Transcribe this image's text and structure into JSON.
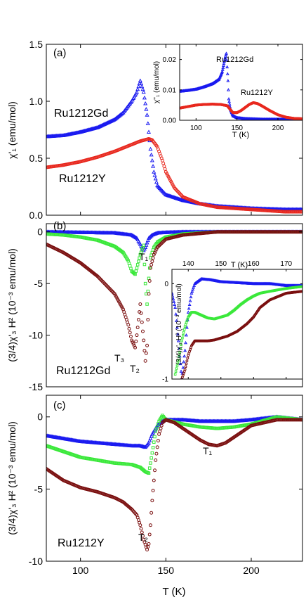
{
  "figure": {
    "xlabel": "T (K)"
  },
  "chart_data": [
    {
      "type": "scatter",
      "panel_label": "(a)",
      "ylabel": "χ'₁ (emu/mol)",
      "xlim": [
        80,
        230
      ],
      "ylim": [
        0,
        1.5
      ],
      "x_ticks": [
        100,
        150,
        200
      ],
      "y_ticks": [
        "0.0",
        "0.5",
        "1.0",
        "1.5"
      ],
      "annotations": [
        "Ru1212Gd",
        "Ru1212Y"
      ],
      "series": [
        {
          "color": "#1a1af0",
          "marker": "triangle",
          "x": [
            80,
            90,
            100,
            110,
            120,
            125,
            130,
            133,
            135,
            137,
            139,
            141,
            143,
            145,
            150,
            160,
            170,
            180,
            200,
            220,
            230
          ],
          "y": [
            0.69,
            0.7,
            0.73,
            0.77,
            0.84,
            0.9,
            1.0,
            1.08,
            1.18,
            1.08,
            0.88,
            0.58,
            0.38,
            0.26,
            0.18,
            0.13,
            0.1,
            0.08,
            0.06,
            0.05,
            0.05
          ]
        },
        {
          "color": "#e8281e",
          "marker": "circle",
          "x": [
            80,
            90,
            100,
            110,
            120,
            130,
            135,
            140,
            142,
            145,
            148,
            150,
            155,
            160,
            170,
            180,
            200,
            220,
            230
          ],
          "y": [
            0.42,
            0.44,
            0.47,
            0.51,
            0.56,
            0.62,
            0.65,
            0.67,
            0.66,
            0.6,
            0.48,
            0.38,
            0.24,
            0.16,
            0.1,
            0.07,
            0.05,
            0.03,
            0.03
          ]
        }
      ],
      "inset": {
        "ylabel": "χ''₁ (emu/mol)",
        "xlabel": "T (K)",
        "xlim": [
          80,
          230
        ],
        "ylim": [
          0,
          0.025
        ],
        "x_ticks": [
          100,
          150,
          200
        ],
        "y_ticks": [
          "0.00",
          "0.01",
          "0.02"
        ],
        "annotations": [
          "Ru1212Gd",
          "Ru1212Y"
        ],
        "series": [
          {
            "color": "#1a1af0",
            "marker": "triangle",
            "x": [
              80,
              90,
              100,
              110,
              120,
              128,
              132,
              135,
              137,
              139,
              140,
              142,
              145,
              150,
              160,
              180,
              200,
              230
            ],
            "y": [
              0.0095,
              0.0098,
              0.0102,
              0.011,
              0.012,
              0.0135,
              0.016,
              0.02,
              0.022,
              0.013,
              0.007,
              0.0035,
              0.0015,
              0.0008,
              0.0005,
              0.0003,
              0.0003,
              0.0003
            ]
          },
          {
            "color": "#e8281e",
            "marker": "circle",
            "x": [
              80,
              90,
              100,
              110,
              120,
              130,
              138,
              142,
              145,
              150,
              155,
              160,
              165,
              170,
              175,
              180,
              190,
              200,
              210,
              220,
              230
            ],
            "y": [
              0.004,
              0.0045,
              0.005,
              0.0052,
              0.0053,
              0.0052,
              0.0048,
              0.0035,
              0.0025,
              0.0025,
              0.0032,
              0.0042,
              0.0052,
              0.0058,
              0.0055,
              0.0048,
              0.0032,
              0.0018,
              0.001,
              0.0006,
              0.0005
            ]
          }
        ]
      }
    },
    {
      "type": "scatter",
      "panel_label": "(b)",
      "ylabel": "(3/4)χ'₃ H² (10⁻³ emu/mol)",
      "xlim": [
        80,
        230
      ],
      "ylim": [
        -15,
        0.8
      ],
      "y_ticks": [
        "0",
        "-5",
        "-10",
        "-15"
      ],
      "annotations": [
        "Ru1212Gd",
        "T₁",
        "T₂",
        "T₃"
      ],
      "series": [
        {
          "color": "#1a1af0",
          "marker": "triangle",
          "x": [
            80,
            100,
            120,
            130,
            133,
            135,
            137,
            138,
            140,
            142,
            145,
            150,
            160,
            170,
            200,
            230
          ],
          "y": [
            0,
            -0.05,
            -0.1,
            -0.3,
            -0.6,
            -1.2,
            -1.8,
            -1.5,
            -0.6,
            -0.3,
            -0.1,
            -0.05,
            0,
            0,
            0,
            0
          ]
        },
        {
          "color": "#3ae83a",
          "marker": "square",
          "x": [
            80,
            90,
            100,
            110,
            120,
            125,
            128,
            130,
            132,
            133,
            135,
            137,
            138,
            139,
            140,
            141,
            143,
            145,
            150,
            160,
            180,
            230
          ],
          "y": [
            -0.2,
            -0.3,
            -0.5,
            -0.8,
            -1.4,
            -2.0,
            -2.8,
            -3.8,
            -4.1,
            -3.5,
            -2.2,
            -1.3,
            -5.0,
            -7.0,
            -4.5,
            -2.5,
            -1.5,
            -1.0,
            -0.5,
            -0.2,
            0,
            0
          ]
        },
        {
          "color": "#7a0f0f",
          "marker": "circle",
          "x": [
            80,
            90,
            100,
            110,
            120,
            125,
            128,
            130,
            132,
            133,
            135,
            137,
            138,
            139,
            140,
            141,
            143,
            145,
            150,
            160,
            180,
            230
          ],
          "y": [
            -1.2,
            -2.0,
            -3.0,
            -4.3,
            -6.0,
            -7.5,
            -9.0,
            -10.5,
            -11.2,
            -10.0,
            -7.0,
            -10.5,
            -12.5,
            -11.0,
            -6.0,
            -3.5,
            -2.2,
            -1.5,
            -0.7,
            -0.3,
            0,
            0
          ]
        }
      ],
      "inset": {
        "ylabel": "(3/4)χ'₃ H² (10⁻³ emu/mol)",
        "xlabel": "T (K)",
        "xlim": [
          135,
          175
        ],
        "ylim": [
          -1,
          0.15
        ],
        "x_ticks": [
          140,
          150,
          160,
          170
        ],
        "y_ticks": [
          "0",
          "-1"
        ],
        "series": [
          {
            "color": "#1a1af0",
            "marker": "triangle",
            "x": [
              135,
              136,
              137,
              138,
              139,
              140,
              141,
              142,
              144,
              147,
              150,
              155,
              160,
              165,
              170,
              175
            ],
            "y": [
              -0.1,
              -0.25,
              -0.6,
              -1.0,
              -0.7,
              -0.3,
              -0.1,
              0.0,
              0.05,
              0.04,
              0.02,
              0.01,
              0.0,
              0.0,
              -0.02,
              -0.02
            ]
          },
          {
            "color": "#3ae83a",
            "marker": "square",
            "x": [
              136,
              137,
              138,
              139,
              140,
              141,
              142,
              144,
              146,
              148,
              150,
              152,
              154,
              156,
              158,
              160,
              162,
              165,
              170,
              175
            ],
            "y": [
              -0.95,
              -0.8,
              -0.6,
              -0.45,
              -0.35,
              -0.3,
              -0.3,
              -0.33,
              -0.36,
              -0.37,
              -0.35,
              -0.33,
              -0.28,
              -0.22,
              -0.17,
              -0.13,
              -0.1,
              -0.08,
              -0.05,
              -0.03
            ]
          },
          {
            "color": "#7a0f0f",
            "marker": "circle",
            "x": [
              138,
              139,
              140,
              141,
              142,
              143,
              144,
              146,
              148,
              150,
              152,
              155,
              158,
              160,
              162,
              165,
              170,
              175
            ],
            "y": [
              -1.0,
              -0.9,
              -0.75,
              -0.65,
              -0.6,
              -0.6,
              -0.6,
              -0.6,
              -0.59,
              -0.57,
              -0.55,
              -0.5,
              -0.42,
              -0.35,
              -0.25,
              -0.17,
              -0.1,
              -0.08
            ]
          }
        ]
      }
    },
    {
      "type": "scatter",
      "panel_label": "(c)",
      "ylabel": "(3/4)χ'₃ H² (10⁻³ emu/mol)",
      "xlim": [
        80,
        230
      ],
      "ylim": [
        -10,
        1.5
      ],
      "x_ticks": [
        100,
        150,
        200
      ],
      "y_ticks": [
        "0",
        "-5",
        "-10"
      ],
      "annotations": [
        "Ru1212Y",
        "T₁",
        "T₂"
      ],
      "series": [
        {
          "color": "#1a1af0",
          "marker": "triangle",
          "x": [
            80,
            90,
            100,
            110,
            120,
            130,
            135,
            138,
            140,
            142,
            145,
            148,
            150,
            160,
            170,
            180,
            190,
            200,
            215,
            230
          ],
          "y": [
            -1.3,
            -1.5,
            -1.7,
            -1.8,
            -1.9,
            -2.0,
            -2.0,
            -2.1,
            -1.8,
            -1.2,
            -0.6,
            -0.3,
            -0.2,
            -0.2,
            -0.3,
            -0.3,
            -0.3,
            -0.2,
            0.0,
            -0.2
          ]
        },
        {
          "color": "#3ae83a",
          "marker": "square",
          "x": [
            80,
            90,
            100,
            110,
            120,
            130,
            135,
            138,
            140,
            142,
            144,
            146,
            148,
            150,
            160,
            170,
            180,
            190,
            200,
            215,
            230
          ],
          "y": [
            -2.0,
            -2.4,
            -2.8,
            -3.0,
            -3.2,
            -3.3,
            -3.5,
            -3.8,
            -3.9,
            -2.5,
            -1.0,
            -0.3,
            0.1,
            -0.2,
            -0.5,
            -0.7,
            -0.8,
            -0.7,
            -0.5,
            0.0,
            -0.2
          ]
        },
        {
          "color": "#7a0f0f",
          "marker": "circle",
          "x": [
            80,
            90,
            100,
            110,
            120,
            125,
            130,
            133,
            135,
            137,
            139,
            140,
            141,
            142,
            144,
            146,
            148,
            150,
            155,
            160,
            165,
            170,
            175,
            180,
            185,
            190,
            200,
            215,
            230
          ],
          "y": [
            -3.6,
            -4.4,
            -4.9,
            -5.2,
            -5.6,
            -5.9,
            -6.4,
            -6.8,
            -7.5,
            -8.5,
            -9.2,
            -8.8,
            -7.5,
            -5.8,
            -3.0,
            -1.2,
            -0.4,
            -0.2,
            -0.4,
            -0.8,
            -1.2,
            -1.6,
            -1.9,
            -2.0,
            -1.8,
            -1.4,
            -0.6,
            -0.2,
            -0.2
          ]
        }
      ]
    }
  ]
}
